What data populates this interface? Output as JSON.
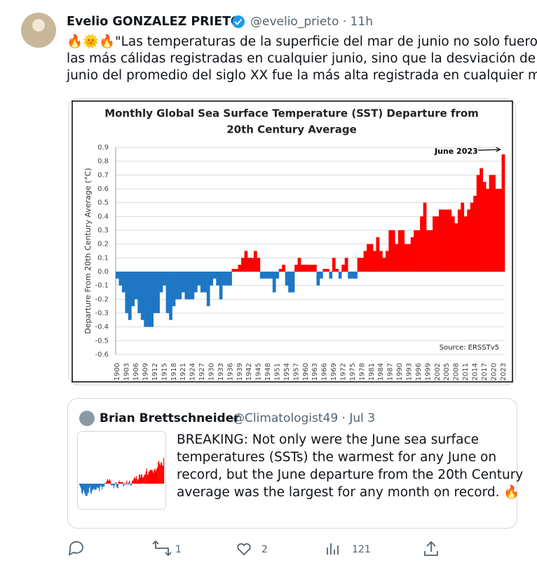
{
  "tweet": {
    "author": "Evelio GONZALEZ PRIETO",
    "meta": "@evelio_prieto · 11h",
    "text_lines": [
      "🔥🌞🔥\"Las temperaturas de la superficie del mar de junio no solo fueron",
      "las más cálidas registradas en cualquier junio, sino que la desviación de",
      "junio del promedio del siglo XX fue la más alta registrada en cualquier mes\""
    ]
  },
  "chart_data": {
    "type": "bar",
    "title": "Monthly Global Sea Surface Temperature (SST) Departure from",
    "subtitle": "20th Century Average",
    "y_label": "Departure From 20th Century Average (°C)",
    "annotation": "June 2023",
    "source": "Source: ERSSTv5",
    "positive_color": "#ff0000",
    "negative_color": "#1f77c4",
    "grid": true,
    "ylim": [
      -0.6,
      0.9
    ],
    "yticks": [
      0.9,
      0.8,
      0.7,
      0.6,
      0.5,
      0.4,
      0.3,
      0.2,
      0.1,
      {
        "value": 0,
        "label": "0.0"
      },
      -0.1,
      -0.2,
      -0.3,
      -0.4,
      -0.5,
      -0.6
    ],
    "categories": [
      "1900",
      null,
      null,
      "1903",
      null,
      null,
      "1906",
      null,
      null,
      "1909",
      null,
      null,
      "1912",
      null,
      null,
      "1915",
      null,
      null,
      "1918",
      null,
      null,
      "1921",
      null,
      null,
      "1924",
      null,
      null,
      "1927",
      null,
      null,
      "1930",
      null,
      null,
      "1933",
      null,
      null,
      "1936",
      null,
      null,
      "1939",
      null,
      null,
      "1942",
      null,
      null,
      "1945",
      null,
      null,
      "1948",
      null,
      null,
      "1951",
      null,
      null,
      "1954",
      null,
      null,
      "1957",
      null,
      null,
      "1960",
      null,
      null,
      "1963",
      null,
      null,
      "1966",
      null,
      null,
      "1969",
      null,
      null,
      "1972",
      null,
      null,
      "1975",
      null,
      null,
      "1978",
      null,
      null,
      "1981",
      null,
      null,
      "1984",
      null,
      null,
      "1987",
      null,
      null,
      "1990",
      null,
      null,
      "1993",
      null,
      null,
      "1996",
      null,
      null,
      "1999",
      null,
      null,
      "2002",
      null,
      null,
      "2005",
      null,
      null,
      "2008",
      null,
      null,
      "2011",
      null,
      null,
      "2014",
      null,
      null,
      "2017",
      null,
      null,
      "2020",
      null,
      null,
      "2023"
    ],
    "values": [
      -0.05,
      -0.1,
      -0.15,
      -0.3,
      -0.35,
      -0.25,
      -0.2,
      -0.3,
      -0.35,
      -0.4,
      -0.4,
      -0.4,
      -0.3,
      -0.3,
      -0.15,
      -0.1,
      -0.3,
      -0.35,
      -0.25,
      -0.2,
      -0.2,
      -0.15,
      -0.2,
      -0.2,
      -0.2,
      -0.15,
      -0.1,
      -0.15,
      -0.15,
      -0.25,
      -0.1,
      -0.05,
      -0.1,
      -0.2,
      -0.1,
      -0.1,
      -0.1,
      0.02,
      0.02,
      0.05,
      0.1,
      0.15,
      0.1,
      0.1,
      0.15,
      0.1,
      -0.05,
      -0.05,
      -0.05,
      -0.05,
      -0.15,
      -0.05,
      0.02,
      0.05,
      -0.1,
      -0.15,
      -0.15,
      0.05,
      0.1,
      0.05,
      0.05,
      0.05,
      0.05,
      0.05,
      -0.1,
      -0.05,
      0.02,
      0.02,
      -0.05,
      0.1,
      0.02,
      -0.05,
      0.05,
      0.1,
      -0.05,
      -0.05,
      -0.05,
      0.1,
      0.1,
      0.15,
      0.2,
      0.2,
      0.15,
      0.25,
      0.15,
      0.1,
      0.15,
      0.3,
      0.3,
      0.2,
      0.3,
      0.3,
      0.2,
      0.2,
      0.25,
      0.3,
      0.3,
      0.4,
      0.5,
      0.3,
      0.3,
      0.4,
      0.4,
      0.45,
      0.45,
      0.45,
      0.45,
      0.4,
      0.35,
      0.45,
      0.5,
      0.4,
      0.45,
      0.5,
      0.55,
      0.7,
      0.75,
      0.65,
      0.6,
      0.7,
      0.7,
      0.6,
      0.6,
      0.85
    ]
  },
  "quote": {
    "author": "Brian Brettschneider",
    "meta": "@Climatologist49 · Jul 3",
    "text_lines": [
      "BREAKING: Not only were the June sea surface",
      "temperatures (SSTs) the warmest for any June on",
      "record, but the June departure from the 20th Century",
      "average was the largest for any month on record. 🔥"
    ]
  },
  "actions": {
    "replies": "",
    "retweets": "1",
    "likes": "2",
    "views": "121"
  }
}
